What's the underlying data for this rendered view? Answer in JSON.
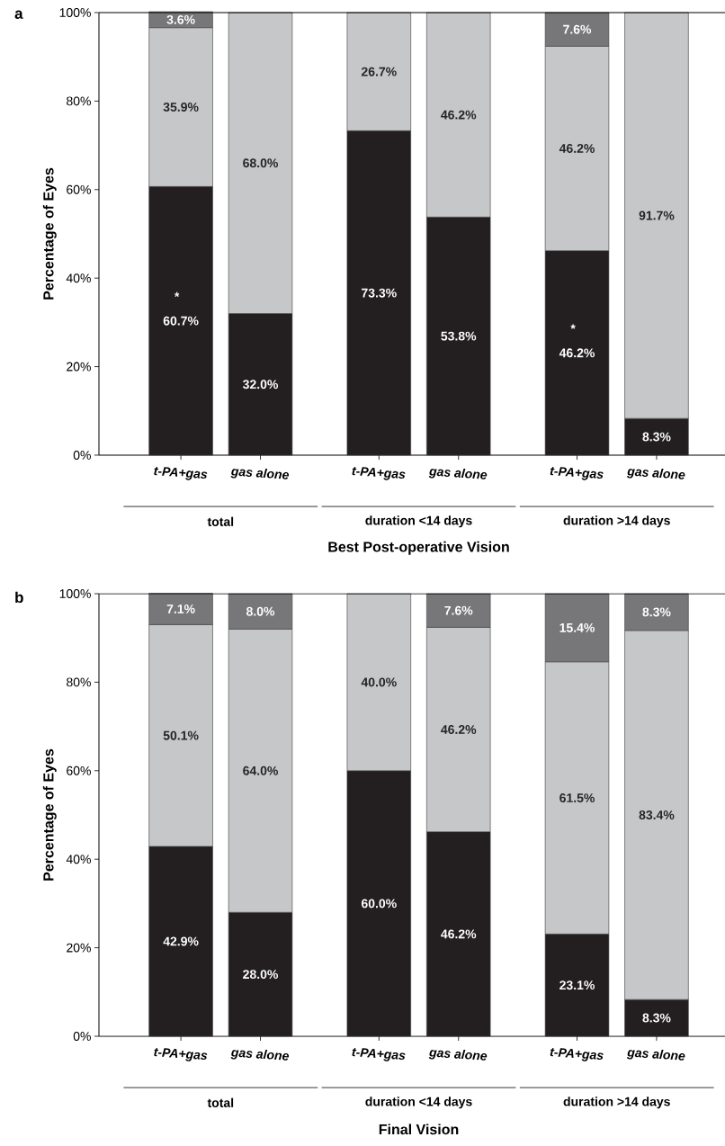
{
  "chart_data": [
    {
      "type": "bar",
      "stacked": true,
      "title": "a",
      "xlabel": "Best Post-operative Vision",
      "ylabel": "Percentage of Eyes",
      "categories": [
        "t-PA+gas",
        "gas alone",
        "t-PA+gas",
        "gas alone",
        "t-PA+gas",
        "gas alone"
      ],
      "series": [
        {
          "color": "#231f20",
          "values": [
            60.7,
            32.0,
            73.3,
            53.8,
            46.2,
            8.3
          ],
          "value_labels": [
            "60.7%",
            "32.0%",
            "73.3%",
            "53.8%",
            "46.2%",
            "8.3%"
          ]
        },
        {
          "color": "#c6c7c9",
          "values": [
            35.9,
            68.0,
            26.7,
            46.2,
            46.2,
            91.7
          ],
          "value_labels": [
            "35.9%",
            "68.0%",
            "26.7%",
            "46.2%",
            "46.2%",
            "91.7%"
          ]
        },
        {
          "color": "#77777a",
          "values": [
            3.6,
            null,
            null,
            null,
            7.6,
            null
          ],
          "value_labels": [
            "3.6%",
            null,
            null,
            null,
            "7.6%",
            null
          ]
        }
      ],
      "ylim": [
        0,
        100
      ],
      "yticks": [
        {
          "value": 0,
          "label": "0%"
        },
        {
          "value": 20,
          "label": "20%"
        },
        {
          "value": 40,
          "label": "40%"
        },
        {
          "value": 60,
          "label": "60%"
        },
        {
          "value": 80,
          "label": "80%"
        },
        {
          "value": 100,
          "label": "100%"
        }
      ],
      "annotations": [
        "total",
        "duration <14 days",
        "duration >14 days",
        "*",
        "*"
      ]
    },
    {
      "type": "bar",
      "stacked": true,
      "title": "b",
      "xlabel": "Final Vision",
      "ylabel": "Percentage of Eyes",
      "categories": [
        "t-PA+gas",
        "gas alone",
        "t-PA+gas",
        "gas alone",
        "t-PA+gas",
        "gas alone"
      ],
      "series": [
        {
          "color": "#231f20",
          "values": [
            42.9,
            28.0,
            60.0,
            46.2,
            23.1,
            8.3
          ],
          "value_labels": [
            "42.9%",
            "28.0%",
            "60.0%",
            "46.2%",
            "23.1%",
            "8.3%"
          ]
        },
        {
          "color": "#c6c7c9",
          "values": [
            50.1,
            64.0,
            40.0,
            46.2,
            61.5,
            83.4
          ],
          "value_labels": [
            "50.1%",
            "64.0%",
            "40.0%",
            "46.2%",
            "61.5%",
            "83.4%"
          ]
        },
        {
          "color": "#77777a",
          "values": [
            7.1,
            8.0,
            null,
            7.6,
            15.4,
            8.3
          ],
          "value_labels": [
            "7.1%",
            "8.0%",
            null,
            "7.6%",
            "15.4%",
            "8.3%"
          ]
        }
      ],
      "ylim": [
        0,
        100
      ],
      "yticks": [
        {
          "value": 0,
          "label": "0%"
        },
        {
          "value": 20,
          "label": "20%"
        },
        {
          "value": 40,
          "label": "40%"
        },
        {
          "value": 60,
          "label": "60%"
        },
        {
          "value": 80,
          "label": "80%"
        },
        {
          "value": 100,
          "label": "100%"
        }
      ],
      "annotations": [
        "total",
        "duration <14 days",
        "duration >14 days"
      ]
    }
  ]
}
